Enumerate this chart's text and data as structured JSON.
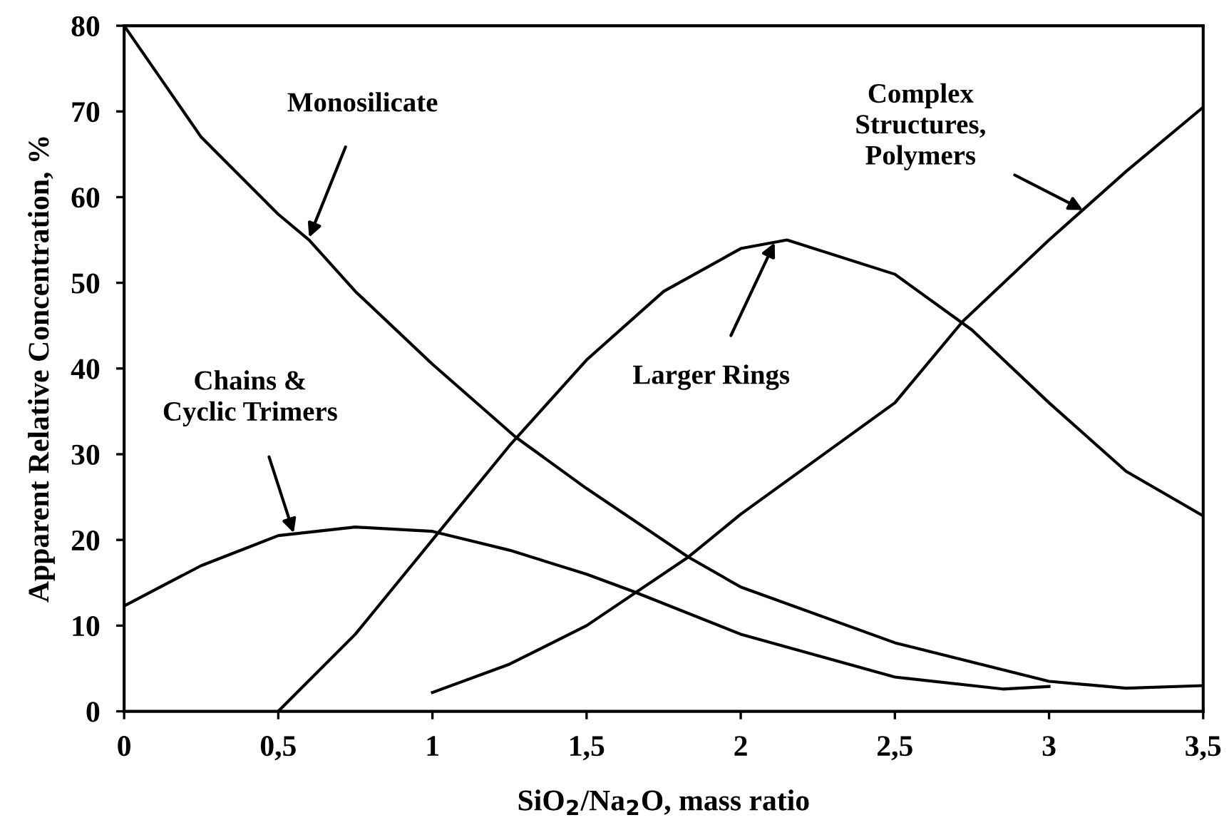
{
  "chart_data": {
    "type": "line",
    "xlabel": "SiO$_{2}$/Na$_{2}$O, mass ratio",
    "ylabel": "Apparent Relative Concentration, %",
    "xlim": [
      0,
      3.5
    ],
    "ylim": [
      0,
      80
    ],
    "xticks": [
      0,
      {
        "value": 0.5,
        "label": "0,5"
      },
      1,
      {
        "value": 1.5,
        "label": "1,5"
      },
      2,
      {
        "value": 2.5,
        "label": "2,5"
      },
      3,
      {
        "value": 3.5,
        "label": "3,5"
      }
    ],
    "yticks": [
      0,
      10,
      20,
      30,
      40,
      50,
      60,
      70,
      80
    ],
    "grid": false,
    "marker": "none",
    "line_style": "solid",
    "series": [
      {
        "color": "#000000",
        "x": [
          0,
          0.25,
          0.5,
          0.6,
          0.75,
          1.0,
          1.27,
          1.5,
          1.83,
          2.0,
          2.5,
          3.0,
          3.25,
          3.5
        ],
        "values": [
          80,
          67,
          58,
          55,
          49,
          40.5,
          32,
          26,
          18,
          14.5,
          8,
          3.5,
          2.7,
          3
        ]
      },
      {
        "color": "#000000",
        "x": [
          0,
          0.25,
          0.5,
          0.75,
          1.0,
          1.25,
          1.5,
          1.65,
          2.0,
          2.5,
          2.85,
          3.0
        ],
        "values": [
          12.3,
          17,
          20.5,
          21.5,
          21,
          18.8,
          16,
          14,
          9,
          4,
          2.6,
          2.9
        ]
      },
      {
        "color": "#000000",
        "x": [
          0.5,
          0.75,
          1.0,
          1.25,
          1.5,
          1.75,
          2.0,
          2.15,
          2.5,
          2.75,
          3.0,
          3.25,
          3.5
        ],
        "values": [
          0,
          9,
          20,
          31,
          41,
          49,
          54,
          55,
          51,
          44.5,
          36,
          28,
          22.8
        ]
      },
      {
        "color": "#000000",
        "x": [
          1.0,
          1.25,
          1.5,
          1.83,
          2.0,
          2.5,
          2.72,
          3.0,
          3.25,
          3.5
        ],
        "values": [
          2.2,
          5.5,
          10,
          18,
          23,
          36,
          45.5,
          55,
          63,
          70.5
        ]
      }
    ],
    "annotations": [
      {
        "text": "Monosilicate",
        "x": 0.6,
        "y": 55.3
      },
      {
        "text": "Chains &\nCyclic Trimers",
        "x": 0.55,
        "y": 20.8
      },
      {
        "text": "Larger Rings",
        "x": 2.11,
        "y": 54.7
      },
      {
        "text": "Complex\nStructures,\nPolymers",
        "x": 3.11,
        "y": 58.5
      }
    ]
  }
}
